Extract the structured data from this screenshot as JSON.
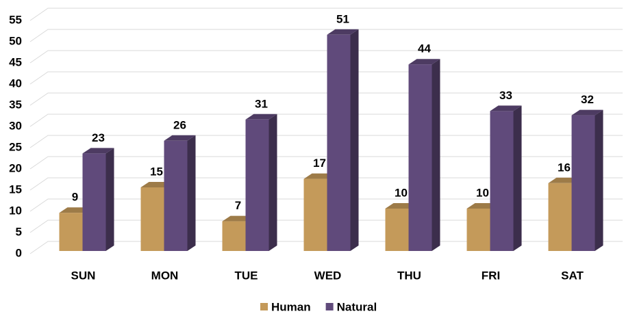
{
  "chart_data": {
    "type": "bar3d",
    "categories": [
      "SUN",
      "MON",
      "TUE",
      "WED",
      "THU",
      "FRI",
      "SAT"
    ],
    "series": [
      {
        "name": "Human",
        "color": "#c49a5a",
        "values": [
          9,
          15,
          7,
          17,
          10,
          10,
          16
        ]
      },
      {
        "name": "Natural",
        "color": "#604a7b",
        "values": [
          23,
          26,
          31,
          51,
          44,
          33,
          32
        ]
      }
    ],
    "ylim": [
      0,
      55
    ],
    "yticks": [
      0,
      5,
      10,
      15,
      20,
      25,
      30,
      35,
      40,
      45,
      50,
      55
    ],
    "grid": true,
    "legend": "bottom"
  }
}
